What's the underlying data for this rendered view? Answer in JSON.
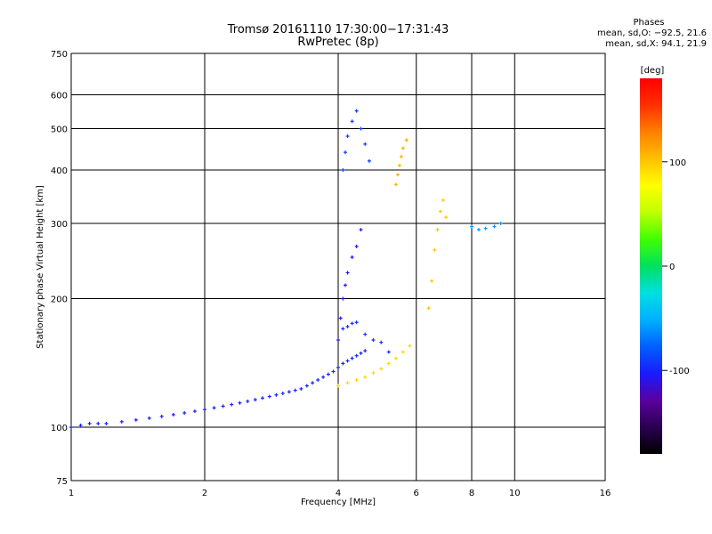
{
  "title": "Tromsø 20161110 17:30:00−17:31:43",
  "subtitle": "RwPretec (8p)",
  "phase_box": {
    "heading": "Phases",
    "line1": "mean, sd,O: −92.5, 21.6",
    "line2": "mean, sd,X:  94.1, 21.9"
  },
  "colors": {
    "background": "#ffffff",
    "grid": "#000000",
    "colorbar": [
      "#000000",
      "#2a0050",
      "#5a00a0",
      "#1a1aff",
      "#0060ff",
      "#00b0ff",
      "#00e0e0",
      "#00e060",
      "#40ff00",
      "#c0ff00",
      "#ffff00",
      "#ffc000",
      "#ff8000",
      "#ff3000",
      "#ff0000"
    ]
  },
  "chart_data": {
    "type": "scatter",
    "x_scale": "log",
    "y_scale": "log",
    "xlim": [
      1,
      16
    ],
    "ylim": [
      75,
      750
    ],
    "x_ticks": [
      1,
      2,
      4,
      6,
      8,
      10,
      16
    ],
    "x_tick_labels": [
      "1",
      "2",
      "4",
      "6",
      "8",
      "10",
      "16"
    ],
    "y_ticks": [
      75,
      100,
      200,
      300,
      400,
      500,
      600,
      750
    ],
    "y_tick_labels": [
      "75",
      "100",
      "200",
      "300",
      "400",
      "500",
      "600",
      "750"
    ],
    "xlabel": "Frequency [MHz]",
    "ylabel": "Stationary phase Virtual Height [km]",
    "grid": true,
    "colorbar": {
      "label": "[deg]",
      "range": [
        -180,
        180
      ],
      "ticks": [
        100,
        0,
        -100
      ],
      "tick_labels": [
        "100",
        "0",
        "-100"
      ]
    },
    "series": [
      {
        "mode": "O",
        "phase": -100,
        "x": [
          1.0,
          1.05,
          1.1,
          1.15,
          1.2,
          1.3,
          1.4,
          1.5,
          1.6,
          1.7,
          1.8,
          1.9,
          2.0,
          2.1,
          2.2,
          2.3,
          2.4,
          2.5,
          2.6,
          2.7,
          2.8,
          2.9,
          3.0,
          3.1,
          3.2,
          3.3,
          3.4,
          3.5,
          3.6,
          3.7,
          3.8,
          3.9,
          4.0,
          4.1,
          4.2,
          4.3,
          4.4,
          4.5,
          4.6
        ],
        "y": [
          100,
          101,
          102,
          102,
          102,
          103,
          104,
          105,
          106,
          107,
          108,
          109,
          110,
          111,
          112,
          113,
          114,
          115,
          116,
          117,
          118,
          119,
          120,
          121,
          122,
          123,
          125,
          127,
          129,
          131,
          133,
          135,
          138,
          141,
          143,
          145,
          147,
          149,
          151
        ]
      },
      {
        "mode": "O-F2",
        "phase": -105,
        "x": [
          4.0,
          4.05,
          4.1,
          4.15,
          4.2,
          4.3,
          4.4,
          4.5
        ],
        "y": [
          160,
          180,
          200,
          215,
          230,
          250,
          265,
          290
        ]
      },
      {
        "mode": "O-spread",
        "phase": -95,
        "x": [
          4.1,
          4.2,
          4.3,
          4.4,
          4.6,
          4.8,
          5.0,
          5.2
        ],
        "y": [
          170,
          172,
          175,
          176,
          165,
          160,
          158,
          150
        ]
      },
      {
        "mode": "O-upper",
        "phase": -90,
        "x": [
          4.1,
          4.15,
          4.2,
          4.3,
          4.4,
          4.5,
          4.6,
          4.7
        ],
        "y": [
          400,
          440,
          480,
          520,
          550,
          500,
          460,
          420
        ]
      },
      {
        "mode": "X",
        "phase": 94,
        "x": [
          4.0,
          4.2,
          4.4,
          4.6,
          4.8,
          5.0,
          5.2,
          5.4,
          5.6,
          5.8
        ],
        "y": [
          125,
          127,
          129,
          131,
          134,
          137,
          141,
          145,
          150,
          155
        ]
      },
      {
        "mode": "X-upper",
        "phase": 110,
        "x": [
          5.4,
          5.45,
          5.5,
          5.55,
          5.6,
          5.7
        ],
        "y": [
          370,
          390,
          410,
          430,
          450,
          470
        ]
      },
      {
        "mode": "X-high",
        "phase": 100,
        "x": [
          6.4,
          6.5,
          6.6,
          6.7,
          6.8,
          6.9,
          7.0
        ],
        "y": [
          190,
          220,
          260,
          290,
          320,
          340,
          310
        ]
      },
      {
        "mode": "high-freq",
        "phase": -60,
        "x": [
          8.0,
          8.3,
          8.6,
          9.0,
          9.3
        ],
        "y": [
          295,
          290,
          292,
          295,
          300
        ]
      }
    ]
  }
}
